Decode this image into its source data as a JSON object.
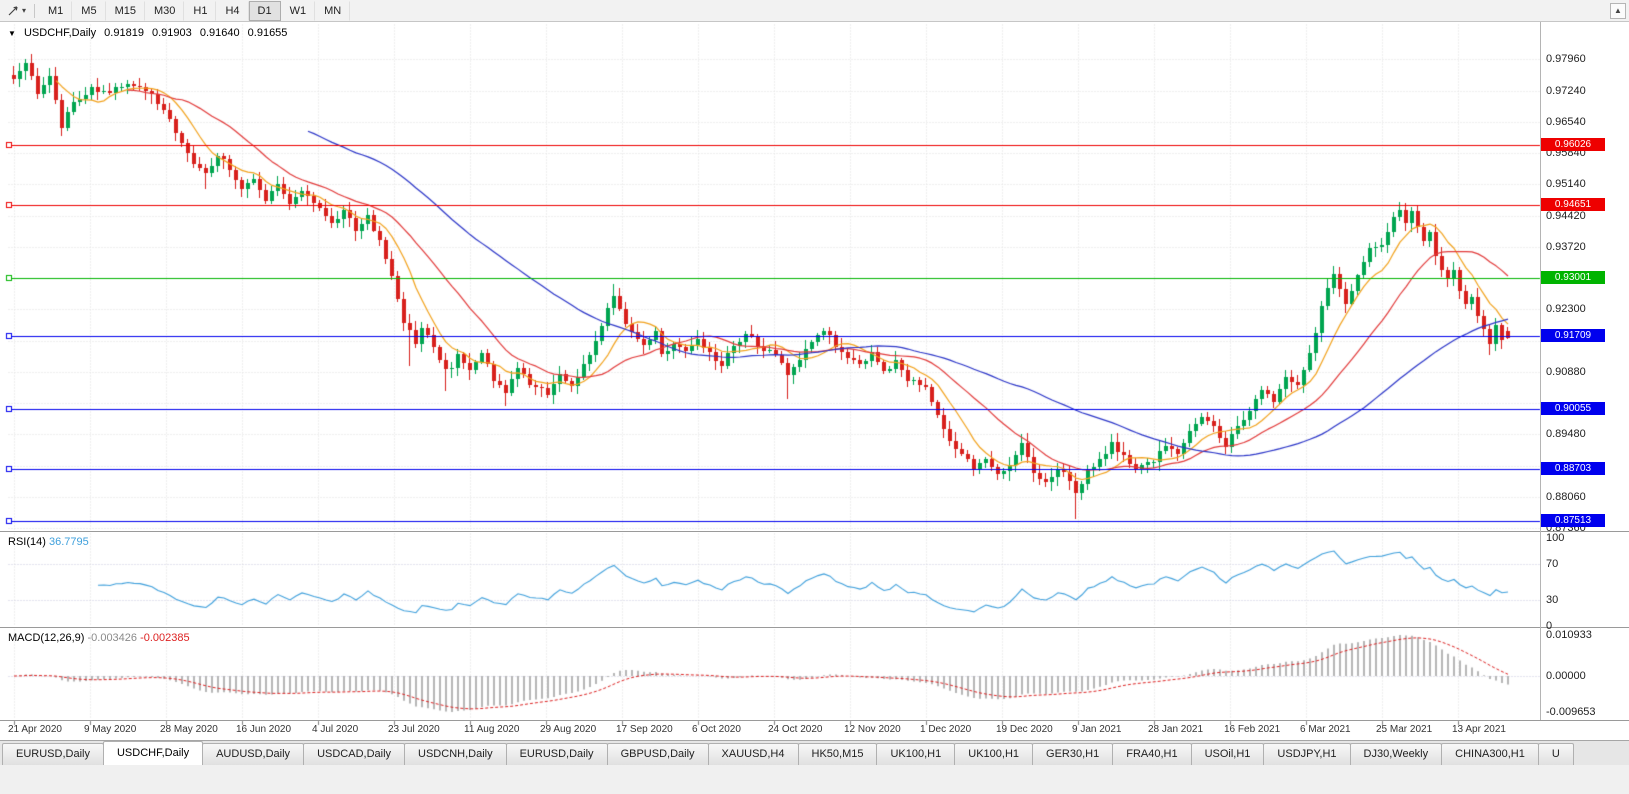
{
  "toolbar": {
    "timeframes": [
      {
        "label": "M1",
        "active": false
      },
      {
        "label": "M5",
        "active": false
      },
      {
        "label": "M15",
        "active": false
      },
      {
        "label": "M30",
        "active": false
      },
      {
        "label": "H1",
        "active": false
      },
      {
        "label": "H4",
        "active": false
      },
      {
        "label": "D1",
        "active": true
      },
      {
        "label": "W1",
        "active": false
      },
      {
        "label": "MN",
        "active": false
      }
    ],
    "scroll_up_glyph": "▲",
    "dropdown_caret_glyph": "▾"
  },
  "chart_header": {
    "collapse_glyph": "▼",
    "symbol": "USDCHF,Daily",
    "open": "0.91819",
    "high": "0.91903",
    "low": "0.91640",
    "close": "0.91655"
  },
  "price_axis": {
    "labels": [
      "0.97960",
      "0.97240",
      "0.96540",
      "0.95840",
      "0.95140",
      "0.94420",
      "0.93720",
      "0.92300",
      "0.90880",
      "0.89480",
      "0.88060",
      "0.87360"
    ]
  },
  "horizontal_lines": [
    {
      "label": "0.96026",
      "price": 0.96026,
      "color": "#ee0000"
    },
    {
      "label": "0.94651",
      "price": 0.94651,
      "color": "#ee0000"
    },
    {
      "label": "0.93001",
      "price": 0.93001,
      "color": "#00b400"
    },
    {
      "label": "0.91709",
      "price": 0.91709,
      "color": "#0000ee"
    },
    {
      "label": "0.90055",
      "price": 0.90055,
      "color": "#0000ee"
    },
    {
      "label": "0.88703",
      "price": 0.88703,
      "color": "#0000ee"
    },
    {
      "label": "0.87513",
      "price": 0.87513,
      "color": "#0000ee"
    }
  ],
  "rsi_panel": {
    "name": "RSI(14)",
    "value": "36.7795",
    "period": 14,
    "axis_labels": [
      {
        "text": "100",
        "value": 100
      },
      {
        "text": "70",
        "value": 70
      },
      {
        "text": "30",
        "value": 30
      },
      {
        "text": "0",
        "value": 0
      }
    ],
    "level_lines": [
      70,
      30
    ],
    "line_color": "#3fa0dc"
  },
  "macd_panel": {
    "name": "MACD(12,26,9)",
    "value_main": "-0.003426",
    "value_signal": "-0.002385",
    "fast_ema": 12,
    "slow_ema": 26,
    "signal_period": 9,
    "axis_labels": [
      {
        "text": "0.010933",
        "value": 0.010933
      },
      {
        "text": "0.00000",
        "value": 0
      },
      {
        "text": "-0.009653",
        "value": -0.009653
      }
    ],
    "histogram_color": "#b6b6b6",
    "signal_color": "#dd2222"
  },
  "date_axis": {
    "labels": [
      "21 Apr 2020",
      "9 May 2020",
      "28 May 2020",
      "16 Jun 2020",
      "4 Jul 2020",
      "23 Jul 2020",
      "11 Aug 2020",
      "29 Aug 2020",
      "17 Sep 2020",
      "6 Oct 2020",
      "24 Oct 2020",
      "12 Nov 2020",
      "1 Dec 2020",
      "19 Dec 2020",
      "9 Jan 2021",
      "28 Jan 2021",
      "16 Feb 2021",
      "6 Mar 2021",
      "25 Mar 2021",
      "13 Apr 2021"
    ]
  },
  "tabs": [
    {
      "label": "EURUSD,Daily",
      "active": false
    },
    {
      "label": "USDCHF,Daily",
      "active": true
    },
    {
      "label": "AUDUSD,Daily",
      "active": false
    },
    {
      "label": "USDCAD,Daily",
      "active": false
    },
    {
      "label": "USDCNH,Daily",
      "active": false
    },
    {
      "label": "EURUSD,Daily",
      "active": false
    },
    {
      "label": "GBPUSD,Daily",
      "active": false
    },
    {
      "label": "XAUUSD,H4",
      "active": false
    },
    {
      "label": "HK50,M15",
      "active": false
    },
    {
      "label": "UK100,H1",
      "active": false
    },
    {
      "label": "UK100,H1",
      "active": false
    },
    {
      "label": "GER30,H1",
      "active": false
    },
    {
      "label": "FRA40,H1",
      "active": false
    },
    {
      "label": "USOil,H1",
      "active": false
    },
    {
      "label": "USDJPY,H1",
      "active": false
    },
    {
      "label": "DJ30,Weekly",
      "active": false
    },
    {
      "label": "CHINA300,H1",
      "active": false
    },
    {
      "label": "U",
      "active": false
    }
  ],
  "colors": {
    "background": "#ffffff",
    "grid": "#e0e0e0",
    "up_candle": "#00a550",
    "down_candle": "#d8201c",
    "ma_fast": "#f2a21c",
    "ma_medium": "#e23a3a",
    "ma_slow": "#2b35c8",
    "indicator_level": "#c9c9dd"
  },
  "chart_data": {
    "type": "candlestick",
    "symbol": "USDCHF",
    "timeframe": "Daily",
    "num_bars": 250,
    "last_ohlc": {
      "open": 0.91819,
      "high": 0.91903,
      "low": 0.9164,
      "close": 0.91655
    },
    "visible_price_range": [
      0.8731,
      0.9861
    ],
    "support_resistance_levels": [
      0.96026,
      0.94651,
      0.93001,
      0.91709,
      0.90055,
      0.88703,
      0.87513
    ],
    "moving_averages": [
      {
        "type": "sma",
        "period": 8
      },
      {
        "type": "sma",
        "period": 20
      },
      {
        "type": "sma",
        "period": 50
      }
    ],
    "close_anchors": [
      [
        0,
        0.9755
      ],
      [
        2,
        0.9785
      ],
      [
        4,
        0.972
      ],
      [
        6,
        0.9758
      ],
      [
        8,
        0.9645
      ],
      [
        10,
        0.97
      ],
      [
        13,
        0.973
      ],
      [
        16,
        0.9718
      ],
      [
        19,
        0.9745
      ],
      [
        22,
        0.9728
      ],
      [
        24,
        0.97
      ],
      [
        26,
        0.9658
      ],
      [
        28,
        0.9612
      ],
      [
        30,
        0.9558
      ],
      [
        32,
        0.9532
      ],
      [
        34,
        0.9578
      ],
      [
        36,
        0.9548
      ],
      [
        38,
        0.95
      ],
      [
        40,
        0.9526
      ],
      [
        42,
        0.9482
      ],
      [
        44,
        0.9508
      ],
      [
        46,
        0.9472
      ],
      [
        48,
        0.9492
      ],
      [
        51,
        0.9455
      ],
      [
        53,
        0.9428
      ],
      [
        55,
        0.945
      ],
      [
        57,
        0.9412
      ],
      [
        59,
        0.9442
      ],
      [
        61,
        0.938
      ],
      [
        63,
        0.9308
      ],
      [
        65,
        0.9205
      ],
      [
        67,
        0.9148
      ],
      [
        68,
        0.9185
      ],
      [
        70,
        0.9152
      ],
      [
        72,
        0.9088
      ],
      [
        74,
        0.9122
      ],
      [
        76,
        0.9095
      ],
      [
        78,
        0.9132
      ],
      [
        80,
        0.9072
      ],
      [
        82,
        0.9045
      ],
      [
        84,
        0.9092
      ],
      [
        86,
        0.9062
      ],
      [
        89,
        0.9038
      ],
      [
        91,
        0.9082
      ],
      [
        93,
        0.906
      ],
      [
        95,
        0.9105
      ],
      [
        97,
        0.9158
      ],
      [
        99,
        0.9235
      ],
      [
        100,
        0.9262
      ],
      [
        101,
        0.9228
      ],
      [
        103,
        0.918
      ],
      [
        105,
        0.9148
      ],
      [
        107,
        0.9185
      ],
      [
        108,
        0.9122
      ],
      [
        110,
        0.9155
      ],
      [
        112,
        0.9138
      ],
      [
        114,
        0.9162
      ],
      [
        116,
        0.9132
      ],
      [
        118,
        0.9105
      ],
      [
        120,
        0.9142
      ],
      [
        122,
        0.9172
      ],
      [
        124,
        0.9152
      ],
      [
        127,
        0.9122
      ],
      [
        129,
        0.9085
      ],
      [
        131,
        0.9122
      ],
      [
        133,
        0.9162
      ],
      [
        135,
        0.9185
      ],
      [
        137,
        0.9148
      ],
      [
        139,
        0.9122
      ],
      [
        141,
        0.9102
      ],
      [
        143,
        0.9132
      ],
      [
        145,
        0.9092
      ],
      [
        147,
        0.9112
      ],
      [
        149,
        0.9072
      ],
      [
        152,
        0.9052
      ],
      [
        154,
        0.8992
      ],
      [
        156,
        0.8932
      ],
      [
        158,
        0.8902
      ],
      [
        160,
        0.8872
      ],
      [
        162,
        0.8895
      ],
      [
        164,
        0.8855
      ],
      [
        166,
        0.8885
      ],
      [
        168,
        0.8925
      ],
      [
        170,
        0.8865
      ],
      [
        172,
        0.8835
      ],
      [
        174,
        0.8872
      ],
      [
        176,
        0.8845
      ],
      [
        177,
        0.8815
      ],
      [
        179,
        0.8865
      ],
      [
        181,
        0.8895
      ],
      [
        183,
        0.8925
      ],
      [
        185,
        0.8895
      ],
      [
        187,
        0.8865
      ],
      [
        190,
        0.8885
      ],
      [
        192,
        0.8925
      ],
      [
        194,
        0.8905
      ],
      [
        196,
        0.8952
      ],
      [
        198,
        0.8992
      ],
      [
        200,
        0.8962
      ],
      [
        202,
        0.8925
      ],
      [
        204,
        0.8965
      ],
      [
        206,
        0.9005
      ],
      [
        208,
        0.9045
      ],
      [
        210,
        0.9025
      ],
      [
        212,
        0.9072
      ],
      [
        214,
        0.9062
      ],
      [
        216,
        0.9125
      ],
      [
        218,
        0.9235
      ],
      [
        220,
        0.9312
      ],
      [
        221,
        0.9282
      ],
      [
        222,
        0.9245
      ],
      [
        223,
        0.9272
      ],
      [
        224,
        0.9302
      ],
      [
        226,
        0.9362
      ],
      [
        228,
        0.9375
      ],
      [
        229,
        0.9412
      ],
      [
        231,
        0.9462
      ],
      [
        232,
        0.9432
      ],
      [
        233,
        0.9452
      ],
      [
        234,
        0.9422
      ],
      [
        235,
        0.9385
      ],
      [
        236,
        0.9402
      ],
      [
        237,
        0.9352
      ],
      [
        238,
        0.9322
      ],
      [
        239,
        0.9295
      ],
      [
        240,
        0.9312
      ],
      [
        241,
        0.9272
      ],
      [
        242,
        0.9245
      ],
      [
        243,
        0.9252
      ],
      [
        244,
        0.9215
      ],
      [
        245,
        0.9185
      ],
      [
        246,
        0.9152
      ],
      [
        247,
        0.9188
      ],
      [
        248,
        0.9162
      ],
      [
        249,
        0.91655
      ]
    ],
    "wick_events": [
      {
        "i": 2,
        "high": 0.9796
      },
      {
        "i": 8,
        "low": 0.9622
      },
      {
        "i": 32,
        "low": 0.9502
      },
      {
        "i": 66,
        "low": 0.9102
      },
      {
        "i": 72,
        "low": 0.9046
      },
      {
        "i": 82,
        "low": 0.9012
      },
      {
        "i": 100,
        "high": 0.9288
      },
      {
        "i": 129,
        "low": 0.9028
      },
      {
        "i": 177,
        "low": 0.8757
      },
      {
        "i": 231,
        "high": 0.9472
      },
      {
        "i": 246,
        "low": 0.9128
      }
    ]
  }
}
